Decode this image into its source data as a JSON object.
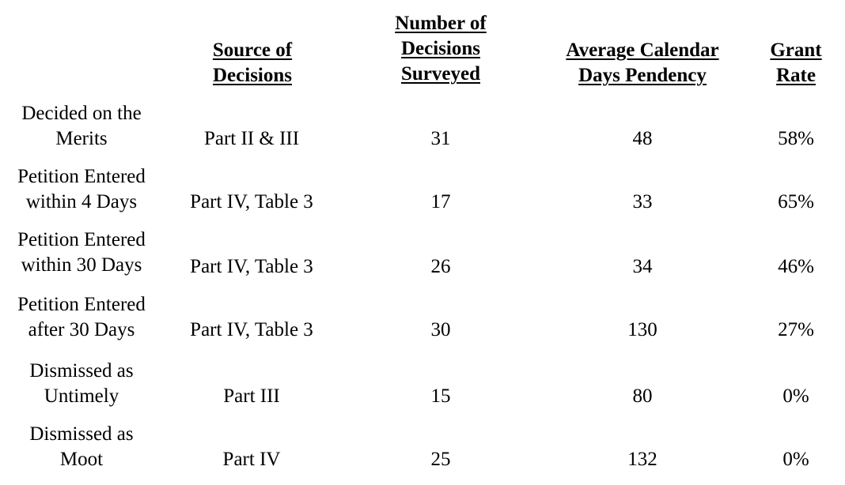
{
  "headers": {
    "source": [
      "Source of",
      "Decisions"
    ],
    "number": [
      "Number of",
      "Decisions",
      "Surveyed"
    ],
    "pendency": [
      "Average Calendar",
      "Days Pendency"
    ],
    "grant": [
      "Grant",
      "Rate"
    ]
  },
  "rows": [
    {
      "label": [
        "Decided on the",
        "Merits"
      ],
      "source": "Part II & III",
      "number": "31",
      "pendency": "48",
      "grant": "58%"
    },
    {
      "label": [
        "Petition Entered",
        "within 4 Days"
      ],
      "source": "Part IV, Table 3",
      "number": "17",
      "pendency": "33",
      "grant": "65%"
    },
    {
      "label": [
        "Petition Entered",
        "within 30 Days"
      ],
      "source": "Part IV, Table 3",
      "number": "26",
      "pendency": "34",
      "grant": "46%"
    },
    {
      "label": [
        "Petition Entered",
        "after 30 Days"
      ],
      "source": "Part IV, Table 3",
      "number": "30",
      "pendency": "130",
      "grant": "27%"
    },
    {
      "label": [
        "Dismissed as",
        "Untimely"
      ],
      "source": "Part III",
      "number": "15",
      "pendency": "80",
      "grant": "0%"
    },
    {
      "label": [
        "Dismissed as",
        "Moot"
      ],
      "source": "Part IV",
      "number": "25",
      "pendency": "132",
      "grant": "0%"
    }
  ]
}
